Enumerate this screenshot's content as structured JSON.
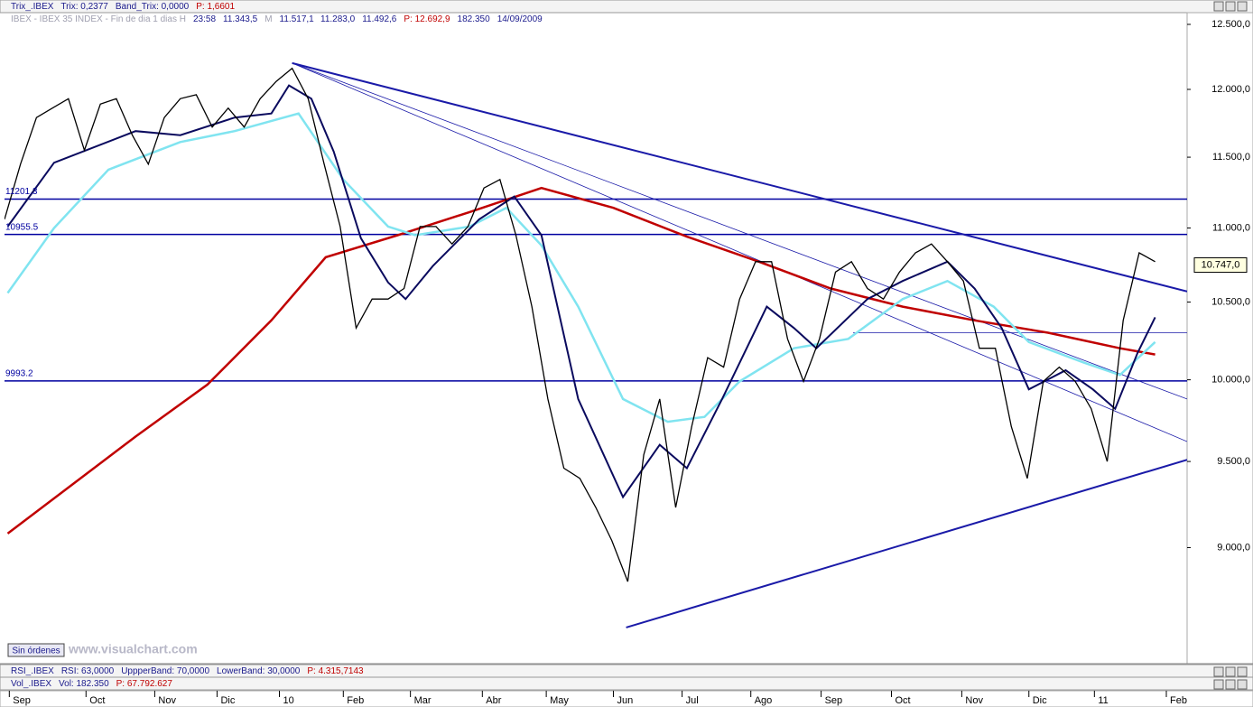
{
  "top_panel": {
    "items": [
      {
        "text": "Trix_.IBEX",
        "color": "#1a1a8c"
      },
      {
        "text": "Trix: 0,2377",
        "color": "#1a1a8c"
      },
      {
        "text": "Band_Trix: 0,0000",
        "color": "#1a1a8c"
      },
      {
        "text": "P: 1,6601",
        "color": "#c00000"
      }
    ]
  },
  "info_row": {
    "items": [
      {
        "text": "IBEX - IBEX 35 INDEX - Fin de dia 1 dias H",
        "color": "#a0a0b0"
      },
      {
        "text": "23:58",
        "color": "#1a1a8c"
      },
      {
        "text": "11.343,5",
        "color": "#1a1a8c"
      },
      {
        "text": "M",
        "color": "#a0a0b0"
      },
      {
        "text": "11.517,1",
        "color": "#1a1a8c"
      },
      {
        "text": "11.283,0",
        "color": "#1a1a8c"
      },
      {
        "text": "11.492,6",
        "color": "#1a1a8c"
      },
      {
        "text": "P: 12.692,9",
        "color": "#c00000"
      },
      {
        "text": "182.350",
        "color": "#1a1a8c"
      },
      {
        "text": "14/09/2009",
        "color": "#1a1a8c"
      }
    ]
  },
  "status": {
    "orders": "Sin órdenes",
    "site": "www.visualchart.com"
  },
  "rsi_panel": {
    "items": [
      {
        "text": "RSI_.IBEX",
        "color": "#1a1a8c"
      },
      {
        "text": "RSI: 63,0000",
        "color": "#1a1a8c"
      },
      {
        "text": "UppperBand: 70,0000",
        "color": "#1a1a8c"
      },
      {
        "text": "LowerBand: 30,0000",
        "color": "#1a1a8c"
      },
      {
        "text": "P: 4.315,7143",
        "color": "#c00000"
      }
    ]
  },
  "vol_panel": {
    "items": [
      {
        "text": "Vol_.IBEX",
        "color": "#1a1a8c"
      },
      {
        "text": "Vol: 182.350",
        "color": "#1a1a8c"
      },
      {
        "text": "P: 67.792.627",
        "color": "#c00000"
      }
    ]
  },
  "chart_data": {
    "type": "line",
    "log_scale": true,
    "xlim": [
      0,
      74
    ],
    "ylim": [
      8377,
      12500
    ],
    "xticks": [
      {
        "value": 0.3,
        "label": "Sep"
      },
      {
        "value": 5.1,
        "label": "Oct"
      },
      {
        "value": 9.4,
        "label": "Nov"
      },
      {
        "value": 13.3,
        "label": "Dic"
      },
      {
        "value": 17.2,
        "label": "10"
      },
      {
        "value": 21.2,
        "label": "Feb"
      },
      {
        "value": 25.4,
        "label": "Mar"
      },
      {
        "value": 29.9,
        "label": "Abr"
      },
      {
        "value": 33.9,
        "label": "May"
      },
      {
        "value": 38.1,
        "label": "Jun"
      },
      {
        "value": 42.4,
        "label": "Jul"
      },
      {
        "value": 46.7,
        "label": "Ago"
      },
      {
        "value": 51.1,
        "label": "Sep"
      },
      {
        "value": 55.5,
        "label": "Oct"
      },
      {
        "value": 59.9,
        "label": "Nov"
      },
      {
        "value": 64.1,
        "label": "Dic"
      },
      {
        "value": 68.2,
        "label": "11"
      },
      {
        "value": 72.7,
        "label": "Feb"
      }
    ],
    "yticks": [
      {
        "value": 12500,
        "label": "12.500,0"
      },
      {
        "value": 12000,
        "label": "12.000,0"
      },
      {
        "value": 11500,
        "label": "11.500,0"
      },
      {
        "value": 11000,
        "label": "11.000,0"
      },
      {
        "value": 10500,
        "label": "10.500,0"
      },
      {
        "value": 10000,
        "label": "10.000,0"
      },
      {
        "value": 9500,
        "label": "9.500,0"
      },
      {
        "value": 9000,
        "label": "9.000,0"
      }
    ],
    "series": [
      {
        "color": "#000000",
        "width": 1.3,
        "x": [
          0,
          1,
          2,
          3,
          4,
          5,
          6,
          7,
          8,
          9,
          10,
          11,
          12,
          13,
          14,
          15,
          16,
          17,
          18,
          19,
          20,
          21,
          22,
          23,
          24,
          25,
          26,
          27,
          28,
          29,
          30,
          31,
          32,
          33,
          34,
          35,
          36,
          37,
          38,
          39,
          40,
          41,
          42,
          43,
          44,
          45,
          46,
          47,
          48,
          49,
          50,
          51,
          52,
          53,
          54,
          55,
          56,
          57,
          58,
          59,
          60,
          61,
          62,
          63,
          64,
          65,
          66,
          67,
          68,
          69,
          70,
          71,
          72
        ],
        "values": [
          11060,
          11450,
          11790,
          11860,
          11930,
          11550,
          11890,
          11930,
          11660,
          11450,
          11790,
          11930,
          11960,
          11720,
          11860,
          11720,
          11930,
          12060,
          12160,
          11930,
          11450,
          11010,
          10330,
          10520,
          10520,
          10590,
          11010,
          11010,
          10890,
          11010,
          11280,
          11340,
          10950,
          10470,
          9880,
          9460,
          9400,
          9230,
          9040,
          8810,
          9540,
          9880,
          9230,
          9710,
          10140,
          10080,
          10520,
          10770,
          10770,
          10260,
          9990,
          10260,
          10700,
          10770,
          10590,
          10520,
          10700,
          10830,
          10890,
          10770,
          10640,
          10200,
          10200,
          9710,
          9400,
          9990,
          10080,
          9990,
          9820,
          9500,
          10380,
          10830,
          10770
        ]
      },
      {
        "color": "#c00000",
        "width": 2.5,
        "x": [
          0.2,
          8.2,
          12.7,
          16.7,
          20.1,
          24.6,
          29.1,
          33.6,
          38.1,
          42.7,
          47.2,
          51.7,
          56.2,
          60.7,
          65.3,
          69.8,
          72
        ],
        "values": [
          9080,
          9650,
          9970,
          10380,
          10800,
          10950,
          11110,
          11280,
          11140,
          10940,
          10770,
          10590,
          10470,
          10380,
          10300,
          10200,
          10160
        ]
      },
      {
        "color": "#80e4f0",
        "width": 2.5,
        "x": [
          0.2,
          3.1,
          6.5,
          11.0,
          14.4,
          18.4,
          21.2,
          24.0,
          25.7,
          29.1,
          31.4,
          33.6,
          35.9,
          38.7,
          41.5,
          43.8,
          46.0,
          49.4,
          52.8,
          56.2,
          59.0,
          61.9,
          64.1,
          67.5,
          69.8,
          72.0
        ],
        "values": [
          10560,
          11000,
          11410,
          11610,
          11690,
          11820,
          11340,
          11010,
          10950,
          11010,
          11140,
          10880,
          10470,
          9880,
          9740,
          9770,
          9990,
          10200,
          10260,
          10520,
          10640,
          10470,
          10240,
          10110,
          10030,
          10240
        ]
      },
      {
        "color": "#0a0a5e",
        "width": 2,
        "x": [
          0.2,
          3.1,
          8.2,
          11.0,
          14.4,
          16.7,
          17.8,
          19.2,
          20.6,
          22.3,
          24.0,
          25.1,
          26.8,
          29.7,
          31.9,
          33.6,
          35.9,
          38.7,
          41.0,
          42.7,
          44.9,
          47.7,
          49.4,
          50.8,
          54.0,
          56.2,
          59.0,
          60.7,
          62.4,
          64.1,
          66.4,
          68.1,
          69.5,
          70.9,
          72.0
        ],
        "values": [
          11010,
          11460,
          11690,
          11660,
          11790,
          11820,
          12030,
          11930,
          11540,
          10930,
          10630,
          10520,
          10740,
          11060,
          11220,
          10950,
          9880,
          9290,
          9600,
          9460,
          9880,
          10470,
          10330,
          10200,
          10520,
          10640,
          10770,
          10590,
          10330,
          9940,
          10060,
          9940,
          9820,
          10170,
          10400
        ]
      }
    ],
    "levels": [
      11201.3,
      10955.5,
      9993.2
    ],
    "level_color": "#0000a0",
    "trendlines": [
      {
        "color": "#1a1aa8",
        "width": 2,
        "x": [
          18.0,
          74
        ],
        "values": [
          12200,
          10570
        ]
      },
      {
        "color": "#1a1aa8",
        "width": 0.8,
        "x": [
          18.0,
          74
        ],
        "values": [
          12200,
          9880
        ]
      },
      {
        "color": "#1a1aa8",
        "width": 0.8,
        "x": [
          18.0,
          74
        ],
        "values": [
          12200,
          9620
        ]
      },
      {
        "color": "#1a1aa8",
        "width": 0.8,
        "x": [
          53.1,
          74
        ],
        "values": [
          10300,
          10300
        ]
      },
      {
        "color": "#1a1aa8",
        "width": 2,
        "x": [
          38.9,
          74
        ],
        "values": [
          8560,
          9510
        ]
      }
    ],
    "last": {
      "value": 10747,
      "label": "10.747,0"
    }
  }
}
